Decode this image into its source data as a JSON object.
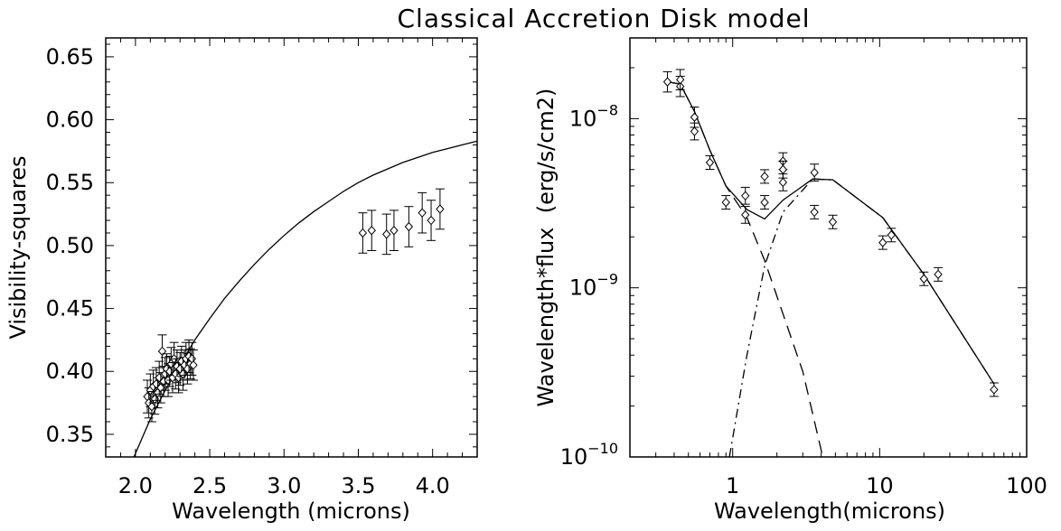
{
  "title": "Classical Accretion Disk model",
  "chart_data": [
    {
      "type": "scatter",
      "xlabel": "Wavelength (microns)",
      "ylabel": "Visibility-squares",
      "xlim": [
        1.8,
        4.3
      ],
      "ylim": [
        0.332,
        0.665
      ],
      "x_ticks": [
        2.0,
        2.5,
        3.0,
        3.5,
        4.0
      ],
      "x_tick_labels": [
        "2.0",
        "2.5",
        "3.0",
        "3.5",
        "4.0"
      ],
      "y_ticks": [
        0.35,
        0.4,
        0.45,
        0.5,
        0.55,
        0.6,
        0.65
      ],
      "y_tick_labels": [
        "0.35",
        "0.40",
        "0.45",
        "0.50",
        "0.55",
        "0.60",
        "0.65"
      ],
      "grid": false,
      "series": [
        {
          "style": "diamond-errorbar",
          "points": [
            {
              "x": 2.08,
              "y": 0.38,
              "err": 0.013
            },
            {
              "x": 2.09,
              "y": 0.375,
              "err": 0.012
            },
            {
              "x": 2.1,
              "y": 0.385,
              "err": 0.013
            },
            {
              "x": 2.11,
              "y": 0.372,
              "err": 0.012
            },
            {
              "x": 2.12,
              "y": 0.388,
              "err": 0.013
            },
            {
              "x": 2.13,
              "y": 0.378,
              "err": 0.012
            },
            {
              "x": 2.14,
              "y": 0.39,
              "err": 0.013
            },
            {
              "x": 2.15,
              "y": 0.383,
              "err": 0.012
            },
            {
              "x": 2.16,
              "y": 0.395,
              "err": 0.013
            },
            {
              "x": 2.17,
              "y": 0.387,
              "err": 0.012
            },
            {
              "x": 2.18,
              "y": 0.416,
              "err": 0.013
            },
            {
              "x": 2.19,
              "y": 0.392,
              "err": 0.012
            },
            {
              "x": 2.2,
              "y": 0.398,
              "err": 0.013
            },
            {
              "x": 2.21,
              "y": 0.402,
              "err": 0.012
            },
            {
              "x": 2.22,
              "y": 0.393,
              "err": 0.013
            },
            {
              "x": 2.23,
              "y": 0.4,
              "err": 0.012
            },
            {
              "x": 2.24,
              "y": 0.406,
              "err": 0.013
            },
            {
              "x": 2.25,
              "y": 0.395,
              "err": 0.012
            },
            {
              "x": 2.26,
              "y": 0.41,
              "err": 0.013
            },
            {
              "x": 2.27,
              "y": 0.398,
              "err": 0.012
            },
            {
              "x": 2.28,
              "y": 0.404,
              "err": 0.013
            },
            {
              "x": 2.29,
              "y": 0.395,
              "err": 0.012
            },
            {
              "x": 2.3,
              "y": 0.402,
              "err": 0.013
            },
            {
              "x": 2.31,
              "y": 0.408,
              "err": 0.012
            },
            {
              "x": 2.32,
              "y": 0.398,
              "err": 0.013
            },
            {
              "x": 2.33,
              "y": 0.405,
              "err": 0.012
            },
            {
              "x": 2.34,
              "y": 0.41,
              "err": 0.013
            },
            {
              "x": 2.35,
              "y": 0.402,
              "err": 0.012
            },
            {
              "x": 2.36,
              "y": 0.412,
              "err": 0.013
            },
            {
              "x": 2.37,
              "y": 0.406,
              "err": 0.012
            },
            {
              "x": 2.38,
              "y": 0.41,
              "err": 0.013
            },
            {
              "x": 2.39,
              "y": 0.405,
              "err": 0.012
            },
            {
              "x": 3.53,
              "y": 0.51,
              "err": 0.016
            },
            {
              "x": 3.59,
              "y": 0.512,
              "err": 0.016
            },
            {
              "x": 3.69,
              "y": 0.509,
              "err": 0.016
            },
            {
              "x": 3.74,
              "y": 0.512,
              "err": 0.016
            },
            {
              "x": 3.84,
              "y": 0.515,
              "err": 0.016
            },
            {
              "x": 3.93,
              "y": 0.526,
              "err": 0.016
            },
            {
              "x": 3.99,
              "y": 0.52,
              "err": 0.016
            },
            {
              "x": 4.05,
              "y": 0.529,
              "err": 0.016
            }
          ]
        },
        {
          "style": "solid-line",
          "x": [
            1.99,
            2.1,
            2.2,
            2.3,
            2.4,
            2.5,
            2.6,
            2.7,
            2.8,
            2.9,
            3.0,
            3.1,
            3.2,
            3.3,
            3.4,
            3.5,
            3.6,
            3.7,
            3.8,
            3.9,
            4.0,
            4.1,
            4.2,
            4.3
          ],
          "y": [
            0.332,
            0.362,
            0.385,
            0.405,
            0.425,
            0.442,
            0.458,
            0.472,
            0.485,
            0.497,
            0.508,
            0.518,
            0.527,
            0.535,
            0.543,
            0.55,
            0.556,
            0.561,
            0.566,
            0.57,
            0.574,
            0.577,
            0.58,
            0.583
          ]
        }
      ]
    },
    {
      "type": "scatter",
      "xscale": "log",
      "yscale": "log",
      "xlabel": "Wavelength(microns)",
      "ylabel": "Wavelength*flux  (erg/s/cm2)",
      "xlim": [
        0.2,
        100
      ],
      "ylim": [
        1e-10,
        3e-08
      ],
      "x_ticks": [
        1,
        10,
        100
      ],
      "x_tick_labels": [
        "1",
        "10",
        "100"
      ],
      "y_ticks": [
        1e-10,
        1e-09,
        1e-08
      ],
      "y_tick_base": "10",
      "y_tick_exponents": [
        "−10",
        "−9",
        "−8"
      ],
      "grid": false,
      "series": [
        {
          "style": "diamond-errorbar",
          "points": [
            {
              "x": 0.36,
              "y": 1.65e-08,
              "err": 0.06
            },
            {
              "x": 0.44,
              "y": 1.55e-08,
              "err": 0.06
            },
            {
              "x": 0.44,
              "y": 1.7e-08,
              "err": 0.06
            },
            {
              "x": 0.55,
              "y": 1.02e-08,
              "err": 0.06
            },
            {
              "x": 0.55,
              "y": 8.4e-09,
              "err": 0.05
            },
            {
              "x": 0.7,
              "y": 5.5e-09,
              "err": 0.04
            },
            {
              "x": 0.9,
              "y": 3.2e-09,
              "err": 0.04
            },
            {
              "x": 1.22,
              "y": 3.5e-09,
              "err": 0.05
            },
            {
              "x": 1.22,
              "y": 2.7e-09,
              "err": 0.05
            },
            {
              "x": 1.65,
              "y": 4.55e-09,
              "err": 0.04
            },
            {
              "x": 1.65,
              "y": 3.2e-09,
              "err": 0.04
            },
            {
              "x": 2.2,
              "y": 5.6e-09,
              "err": 0.05
            },
            {
              "x": 2.2,
              "y": 5e-09,
              "err": 0.05
            },
            {
              "x": 2.2,
              "y": 4.2e-09,
              "err": 0.05
            },
            {
              "x": 3.6,
              "y": 4.8e-09,
              "err": 0.05
            },
            {
              "x": 3.6,
              "y": 2.8e-09,
              "err": 0.04
            },
            {
              "x": 4.8,
              "y": 2.45e-09,
              "err": 0.04
            },
            {
              "x": 10.5,
              "y": 1.85e-09,
              "err": 0.04
            },
            {
              "x": 12.0,
              "y": 2.05e-09,
              "err": 0.04
            },
            {
              "x": 20.0,
              "y": 1.13e-09,
              "err": 0.04
            },
            {
              "x": 25.0,
              "y": 1.2e-09,
              "err": 0.04
            },
            {
              "x": 60.0,
              "y": 2.5e-10,
              "err": 0.04
            }
          ]
        },
        {
          "style": "solid-line",
          "x": [
            0.36,
            0.44,
            0.55,
            0.7,
            0.9,
            1.25,
            1.65,
            2.2,
            3.5,
            4.8,
            10.5,
            20,
            60
          ],
          "y": [
            1.65e-08,
            1.6e-08,
            1.1e-08,
            6.5e-09,
            4e-09,
            2.9e-09,
            2.55e-09,
            3.3e-09,
            4.4e-09,
            4.35e-09,
            2.6e-09,
            1.2e-09,
            2.7e-10
          ]
        },
        {
          "style": "dashed-line",
          "x": [
            0.36,
            0.44,
            0.55,
            0.7,
            0.9,
            1.25,
            1.65,
            2.2,
            3.0,
            4.1
          ],
          "y": [
            1.65e-08,
            1.6e-08,
            1.1e-08,
            6.5e-09,
            4e-09,
            2.6e-09,
            1.45e-09,
            7e-10,
            3.2e-10,
            1e-10
          ]
        },
        {
          "style": "dashdot-line",
          "x": [
            0.95,
            1.25,
            1.65,
            2.2,
            3.5,
            4.8,
            10.5,
            20,
            60
          ],
          "y": [
            1e-10,
            4e-10,
            1.35e-09,
            2.8e-09,
            4.4e-09,
            4.35e-09,
            2.6e-09,
            1.2e-09,
            2.7e-10
          ]
        }
      ]
    }
  ]
}
